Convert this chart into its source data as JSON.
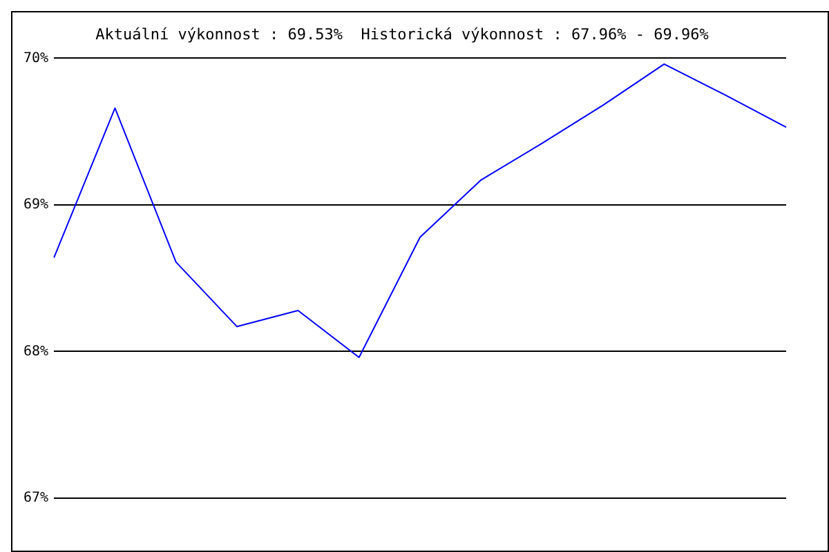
{
  "chart_data": {
    "type": "line",
    "title": "Aktuální výkonnost : 69.53%  Historická výkonnost : 67.96% - 69.96%",
    "categories": [
      null,
      null,
      null,
      null,
      null,
      null,
      null,
      null,
      null,
      null,
      null,
      null,
      null
    ],
    "series": [
      {
        "color": "#0000ff",
        "values": [
          68.64,
          69.66,
          68.61,
          68.17,
          68.28,
          67.96,
          68.78,
          69.17,
          69.42,
          69.68,
          69.96,
          69.75,
          69.53
        ]
      }
    ],
    "ylim": [
      67,
      70
    ],
    "yticks": [
      {
        "value": 67,
        "label": "67%"
      },
      {
        "value": 68,
        "label": "68%"
      },
      {
        "value": 69,
        "label": "69%"
      },
      {
        "value": 70,
        "label": "70%"
      }
    ],
    "grid": "y",
    "marker": "none",
    "line_style": "solid",
    "legend": false,
    "tick_labels": "y"
  }
}
